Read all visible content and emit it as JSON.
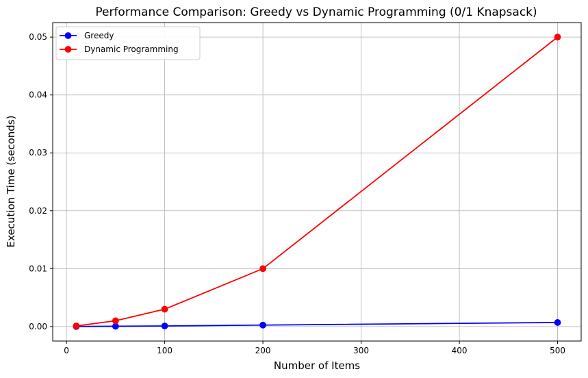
{
  "chart_data": {
    "type": "line",
    "title": "Performance Comparison: Greedy vs Dynamic Programming (0/1 Knapsack)",
    "xlabel": "Number of Items",
    "ylabel": "Execution Time (seconds)",
    "x": [
      10,
      50,
      100,
      200,
      500
    ],
    "xlim": [
      -14,
      524
    ],
    "ylim": [
      -0.0025,
      0.0525
    ],
    "xticks": [
      0,
      100,
      200,
      300,
      400,
      500
    ],
    "yticks": [
      0.0,
      0.01,
      0.02,
      0.03,
      0.04,
      0.05
    ],
    "xtick_labels": [
      "0",
      "100",
      "200",
      "300",
      "400",
      "500"
    ],
    "ytick_labels": [
      "0.00",
      "0.01",
      "0.02",
      "0.03",
      "0.04",
      "0.05"
    ],
    "grid": true,
    "legend_position": "top-left",
    "series": [
      {
        "name": "Greedy",
        "color": "#0000ff",
        "marker": "circle",
        "values": [
          1e-05,
          5e-05,
          0.0001,
          0.00025,
          0.0007
        ]
      },
      {
        "name": "Dynamic Programming",
        "color": "#ff0000",
        "marker": "circle",
        "values": [
          0.0001,
          0.001,
          0.003,
          0.01,
          0.05
        ]
      }
    ]
  }
}
